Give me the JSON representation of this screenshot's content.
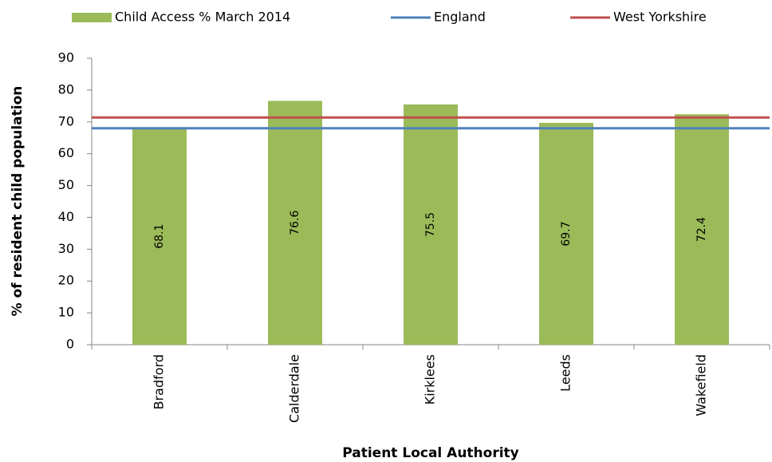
{
  "chart_data": {
    "type": "bar",
    "categories": [
      "Bradford",
      "Calderdale",
      "Kirklees",
      "Leeds",
      "Wakefield"
    ],
    "series": [
      {
        "name": "Child Access % March 2014",
        "color": "#9bbb59",
        "values": [
          68.1,
          76.6,
          75.5,
          69.7,
          72.4
        ]
      }
    ],
    "reference_lines": [
      {
        "name": "England",
        "color": "#4f81bd",
        "value": 68
      },
      {
        "name": "West Yorkshire",
        "color": "#c0504d",
        "value": 71.4
      }
    ],
    "ylim": [
      0,
      90
    ],
    "yticks": [
      0,
      10,
      20,
      30,
      40,
      50,
      60,
      70,
      80,
      90
    ],
    "xlabel": "Patient Local Authority",
    "ylabel": "% of resident child population",
    "legend": "top",
    "grid": false
  }
}
